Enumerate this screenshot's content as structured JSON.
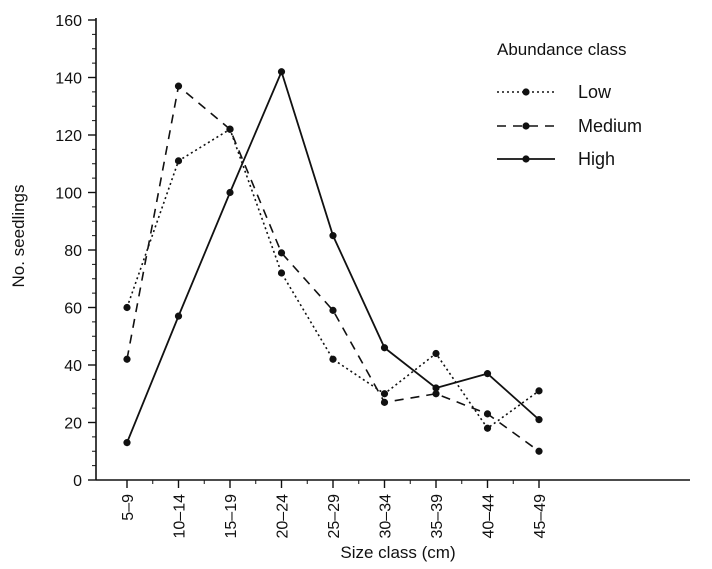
{
  "chart_data": {
    "type": "line",
    "title": "",
    "xlabel": "Size class (cm)",
    "ylabel": "No. seedlings",
    "categories": [
      "5–9",
      "10–14",
      "15–19",
      "20–24",
      "25–29",
      "30–34",
      "35–39",
      "40–44",
      "45–49"
    ],
    "ylim": [
      0,
      160
    ],
    "y_ticks": [
      0,
      20,
      40,
      60,
      80,
      100,
      120,
      140,
      160
    ],
    "grid": false,
    "legend": {
      "title": "Abundance class",
      "position": "top-right"
    },
    "series": [
      {
        "name": "Low",
        "style": "dotted",
        "values": [
          60,
          111,
          122,
          72,
          42,
          30,
          44,
          18,
          31
        ]
      },
      {
        "name": "Medium",
        "style": "dashed",
        "values": [
          42,
          137,
          122,
          79,
          59,
          27,
          30,
          23,
          10
        ]
      },
      {
        "name": "High",
        "style": "solid",
        "values": [
          13,
          57,
          100,
          142,
          85,
          46,
          32,
          37,
          21
        ]
      }
    ],
    "colors": {
      "line": "#111111",
      "axis": "#111111",
      "text": "#111111",
      "background": "#ffffff"
    }
  }
}
